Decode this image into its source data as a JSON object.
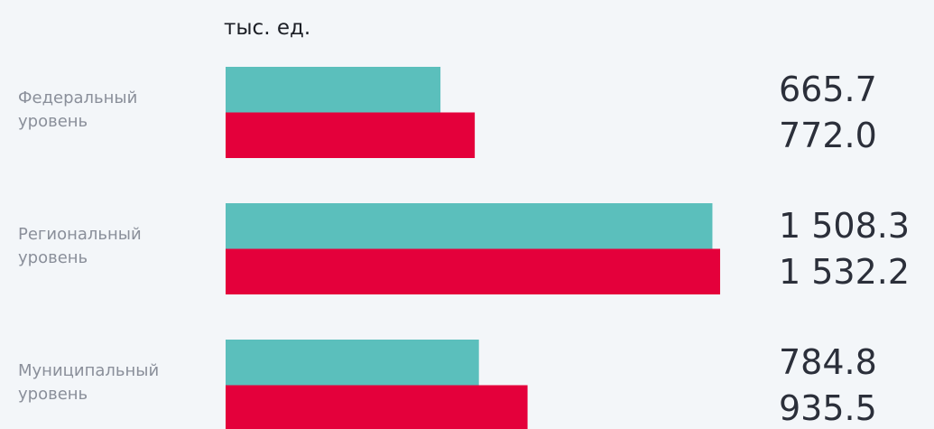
{
  "chart_data": {
    "type": "barh",
    "title": "тыс. ед.",
    "categories": [
      "Федеральный уровень",
      "Региональный уровень",
      "Муниципальный уровень"
    ],
    "series": [
      {
        "color": "#5bbfbc",
        "values": [
          665.7,
          1508.3,
          784.8
        ],
        "value_labels": [
          "665.7",
          "1 508.3",
          "784.8"
        ]
      },
      {
        "color": "#e4003b",
        "values": [
          772.0,
          1532.2,
          935.5
        ],
        "value_labels": [
          "772.0",
          "1 532.2",
          "935.5"
        ]
      }
    ]
  }
}
